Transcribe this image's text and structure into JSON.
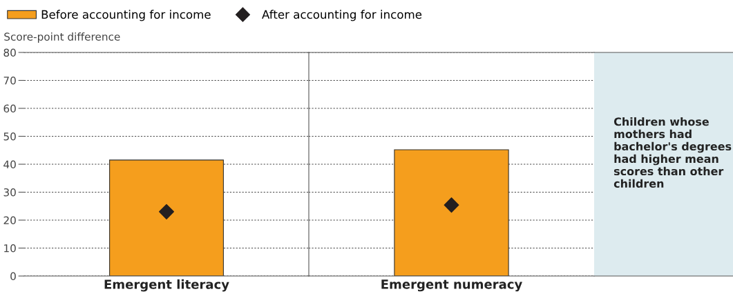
{
  "chart_data": [
    {
      "type": "bar",
      "ylabel": "Score-point difference",
      "categories": [
        "Emergent literacy"
      ],
      "series": [
        {
          "name": "Before accounting for income",
          "type": "bar",
          "color": "#f59e1d",
          "values": [
            41.5
          ]
        },
        {
          "name": "After accounting for income",
          "type": "scatter",
          "color": "#231f20",
          "marker": "diamond",
          "values": [
            23
          ]
        }
      ],
      "ylim": [
        0,
        80
      ],
      "yticks": [
        0,
        10,
        20,
        30,
        40,
        50,
        60,
        70,
        80
      ],
      "grid": "y",
      "legend": "top"
    },
    {
      "type": "bar",
      "categories": [
        "Emergent numeracy"
      ],
      "series": [
        {
          "type": "bar",
          "color": "#f59e1d",
          "values": [
            45.2
          ]
        },
        {
          "type": "scatter",
          "color": "#231f20",
          "marker": "diamond",
          "values": [
            25.4
          ]
        }
      ],
      "ylim": [
        0,
        80
      ],
      "yticks": [
        0,
        10,
        20,
        30,
        40,
        50,
        60,
        70,
        80
      ],
      "grid": "y",
      "tick_labels": "x"
    },
    {
      "type": "other",
      "annotations": [
        "Children whose mothers had bachelor's degrees had higher mean scores than other children"
      ]
    }
  ]
}
